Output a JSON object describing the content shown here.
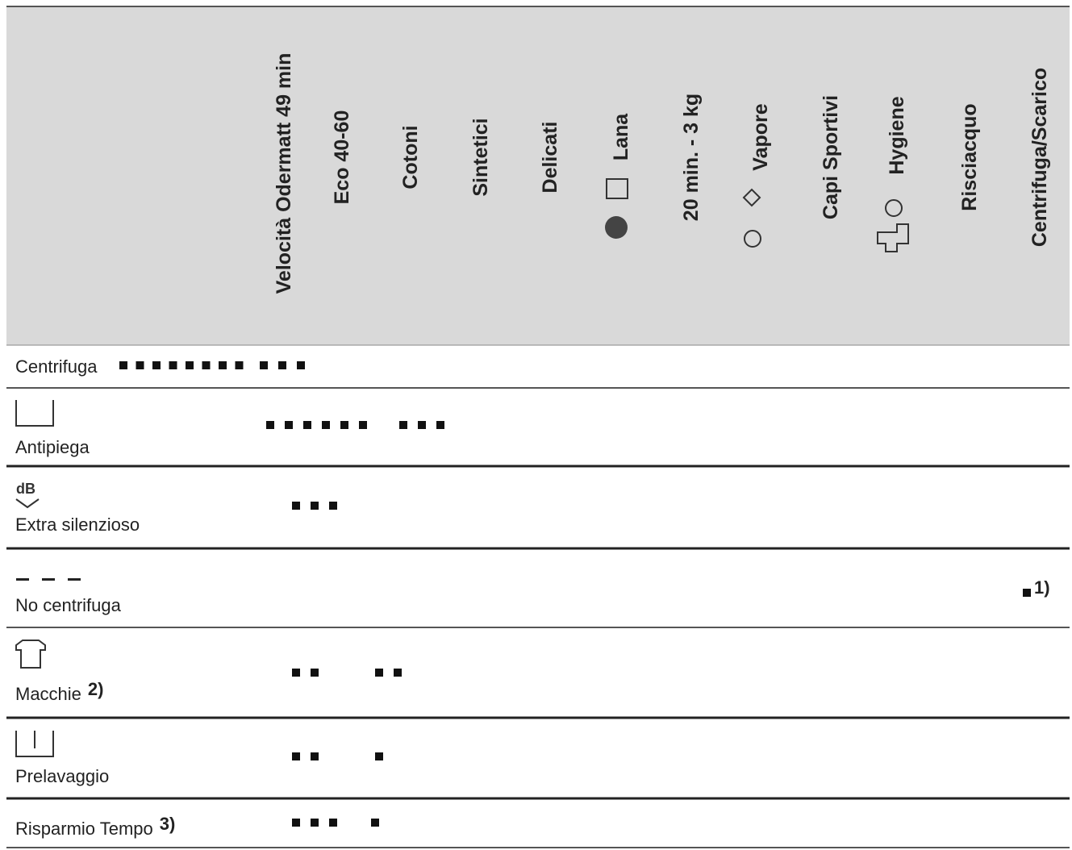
{
  "table": {
    "columns": [
      "Velocità Odermatt 49 min",
      "Eco 40-60",
      "Cotoni",
      "Sintetici",
      "Delicati",
      "Lana",
      "20 min. - 3 kg",
      "Vapore",
      "Capi Sportivi",
      "Hygiene",
      "Risciacquo",
      "Centrifuga/Scarico"
    ],
    "rows": [
      {
        "label": "Centrifuga"
      },
      {
        "label": "Antipiega"
      },
      {
        "label": "Extra silenzioso"
      },
      {
        "label": "No centrifuga",
        "note": "1)"
      },
      {
        "label": "Macchie",
        "note": "2)"
      },
      {
        "label": "Prelavaggio"
      },
      {
        "label": "Risparmio Tempo",
        "note": "3)"
      }
    ]
  }
}
